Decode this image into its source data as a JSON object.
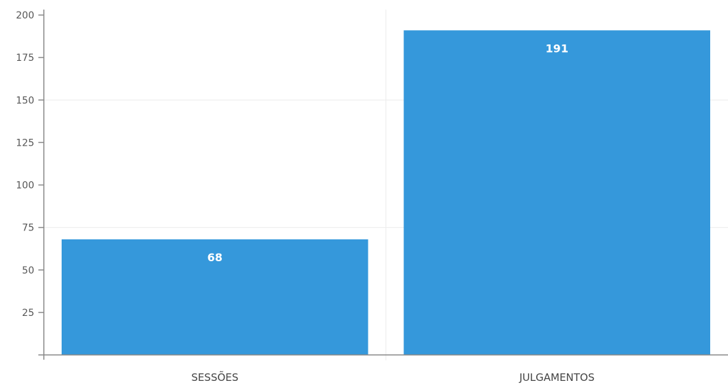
{
  "chart_data": {
    "type": "bar",
    "categories": [
      "SESSÕES",
      "JULGAMENTOS"
    ],
    "values": [
      68,
      191
    ],
    "ylim": [
      0,
      200
    ],
    "yticks": [
      25,
      50,
      75,
      100,
      125,
      150,
      175,
      200
    ],
    "grid": true,
    "bar_color": "#3598db",
    "data_labels": true
  }
}
